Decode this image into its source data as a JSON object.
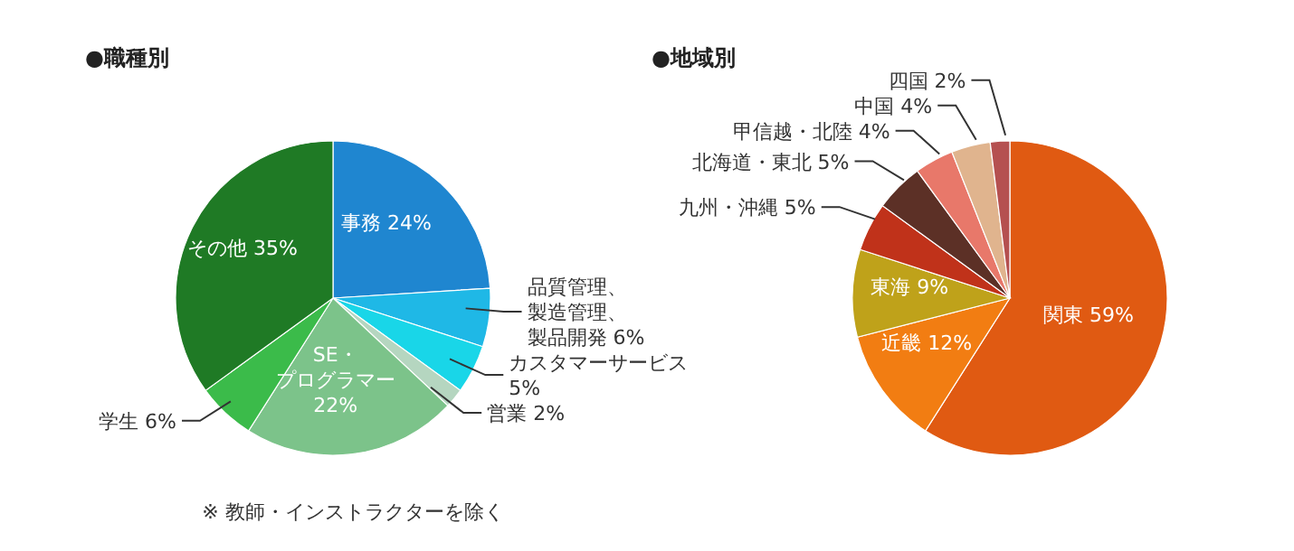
{
  "chart_data": [
    {
      "type": "pie",
      "title": "●職種別",
      "categories": [
        "事務",
        "品質管理、製造管理、製品開発",
        "カスタマーサービス",
        "営業",
        "SE・プログラマー",
        "学生",
        "その他"
      ],
      "values": [
        24,
        6,
        5,
        2,
        22,
        6,
        35
      ],
      "value_labels": [
        "24%",
        "6%",
        "5%",
        "2%",
        "22%",
        "6%",
        "35%"
      ],
      "colors": [
        "#1f86d0",
        "#1fb8e6",
        "#19d6e8",
        "#b5d6c0",
        "#7cc38a",
        "#3bbb4a",
        "#1f7a25"
      ],
      "annotations": [
        "※ 教師・インストラクターを除く"
      ]
    },
    {
      "type": "pie",
      "title": "●地域別",
      "categories": [
        "関東",
        "近畿",
        "東海",
        "九州・沖縄",
        "北海道・東北",
        "甲信越・北陸",
        "中国",
        "四国"
      ],
      "values": [
        59,
        12,
        9,
        5,
        5,
        4,
        4,
        2
      ],
      "value_labels": [
        "59%",
        "12%",
        "9%",
        "5%",
        "5%",
        "4%",
        "4%",
        "2%"
      ],
      "colors": [
        "#e05a12",
        "#f27d12",
        "#bfa21a",
        "#c0321a",
        "#5c3026",
        "#e8786a",
        "#e0b48e",
        "#b55050"
      ]
    }
  ]
}
